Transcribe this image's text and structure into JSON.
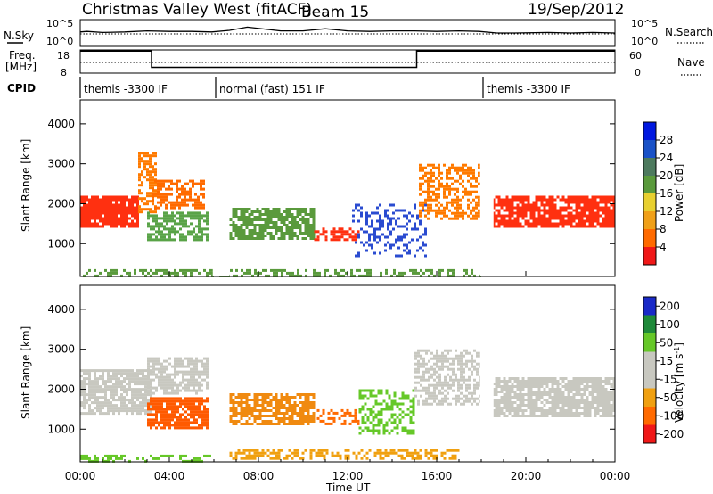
{
  "header": {
    "title": "Christmas Valley West (fitACF)",
    "beam": "Beam 15",
    "date": "19/Sep/2012"
  },
  "strip_labels": {
    "nsky": "N.Sky",
    "nsearch": "N.Search",
    "freq_line1": "Freq.",
    "freq_line2": "[MHz]",
    "nave": "Nave",
    "cpid": "CPID",
    "noise_tick_top": "10^5",
    "noise_tick_bottom": "10^0",
    "freq_tick_top": "18",
    "freq_tick_bottom": "8",
    "nave_tick_top": "60",
    "nave_tick_bottom": "0"
  },
  "modes": [
    {
      "label": "themis -3300 IF",
      "start_hour": 0.0,
      "end_hour": 6.0
    },
    {
      "label": "normal (fast) 151 IF",
      "start_hour": 6.0,
      "end_hour": 18.0
    },
    {
      "label": "themis -3300 IF",
      "start_hour": 18.0,
      "end_hour": 24.0
    }
  ],
  "chart_data": [
    {
      "type": "line",
      "name": "noise",
      "series": [
        {
          "name": "N.Sky",
          "x": [
            0,
            0.3,
            1,
            2,
            3,
            4,
            5,
            5.9,
            6.7,
            7.5,
            9,
            10,
            11,
            12,
            13,
            14,
            15,
            16,
            17,
            17.9,
            18.7,
            19.5,
            21,
            22,
            23,
            24
          ],
          "values": [
            2.7,
            2.8,
            2.6,
            2.7,
            2.9,
            2.8,
            2.8,
            2.7,
            3.0,
            3.6,
            2.9,
            2.9,
            3.3,
            2.9,
            2.8,
            2.9,
            2.9,
            2.8,
            2.9,
            2.8,
            2.5,
            2.5,
            2.6,
            2.5,
            2.6,
            2.5
          ]
        }
      ],
      "ylim": [
        0,
        5
      ]
    },
    {
      "type": "line",
      "name": "frequency",
      "series": [
        {
          "name": "Freq.",
          "x": [
            0,
            0.4,
            0.4,
            3.2,
            3.2,
            6.0,
            6.7,
            15.1,
            15.1,
            18.0,
            18.7,
            24
          ],
          "values": [
            17.5,
            17.5,
            17.5,
            17.5,
            10.5,
            10.5,
            10.5,
            10.5,
            17.5,
            17.5,
            17.5,
            17.5
          ]
        }
      ],
      "ylim": [
        8,
        18
      ]
    },
    {
      "type": "heatmap",
      "name": "power",
      "xlabel": "",
      "ylabel": "Slant Range [km]",
      "xlim": [
        0,
        24
      ],
      "ylim": [
        180,
        4600
      ],
      "yticks": [
        1000,
        2000,
        3000,
        4000
      ],
      "colorbar": {
        "label": "Power [dB]",
        "ticks": [
          "4",
          "8",
          "12",
          "16",
          "20",
          "24",
          "28"
        ],
        "colors": [
          "#0018e0",
          "#1a52c8",
          "#4d7a5e",
          "#5a9a3c",
          "#e8d030",
          "#f0a018",
          "#ff6a00",
          "#f01818"
        ]
      },
      "regions": [
        {
          "x": [
            0.0,
            2.6
          ],
          "y": [
            1400,
            2200
          ],
          "color": "#ff3010",
          "density": 0.9
        },
        {
          "x": [
            2.6,
            3.4
          ],
          "y": [
            1800,
            3300
          ],
          "color": "#ff7a00",
          "density": 0.6
        },
        {
          "x": [
            3.0,
            5.7
          ],
          "y": [
            1100,
            1800
          ],
          "color": "#59a347",
          "density": 0.7
        },
        {
          "x": [
            3.2,
            5.5
          ],
          "y": [
            1900,
            2600
          ],
          "color": "#ff6a00",
          "density": 0.55
        },
        {
          "x": [
            6.7,
            10.5
          ],
          "y": [
            1150,
            1900
          ],
          "color": "#5a9a3c",
          "density": 0.75
        },
        {
          "x": [
            10.5,
            12.5
          ],
          "y": [
            1100,
            1400
          ],
          "color": "#ff3010",
          "density": 0.6
        },
        {
          "x": [
            12.2,
            15.5
          ],
          "y": [
            700,
            2000
          ],
          "color": "#2a4bd0",
          "density": 0.3
        },
        {
          "x": [
            15.2,
            17.9
          ],
          "y": [
            1600,
            3000
          ],
          "color": "#ff7a00",
          "density": 0.55
        },
        {
          "x": [
            18.5,
            24.0
          ],
          "y": [
            1400,
            2200
          ],
          "color": "#ff3010",
          "density": 0.85
        },
        {
          "x": [
            0.0,
            18.0
          ],
          "y": [
            200,
            360
          ],
          "color": "#5a9a3c",
          "density": 0.45
        }
      ]
    },
    {
      "type": "heatmap",
      "name": "velocity",
      "xlabel": "Time UT",
      "ylabel": "Slant Range [km]",
      "xlim": [
        0,
        24
      ],
      "ylim": [
        180,
        4600
      ],
      "xticks": [
        "00:00",
        "04:00",
        "08:00",
        "12:00",
        "16:00",
        "20:00",
        "00:00"
      ],
      "yticks": [
        1000,
        2000,
        3000,
        4000
      ],
      "colorbar": {
        "label": "Velocity [m s^-1]",
        "ticks": [
          "200",
          "100",
          "50",
          "15",
          "-15",
          "-50",
          "-100",
          "-200"
        ],
        "colors": [
          "#1a2ac8",
          "#1f8a3a",
          "#66c828",
          "#c8c8c0",
          "#c8c8c0",
          "#f0a010",
          "#ff6a00",
          "#f01818"
        ]
      },
      "regions": [
        {
          "x": [
            0.0,
            3.2
          ],
          "y": [
            1400,
            2500
          ],
          "color": "#c8c8c0",
          "density": 0.8
        },
        {
          "x": [
            3.0,
            5.7
          ],
          "y": [
            1900,
            2800
          ],
          "color": "#c8c8c0",
          "density": 0.7
        },
        {
          "x": [
            3.0,
            5.7
          ],
          "y": [
            1000,
            1800
          ],
          "color": "#ff5a00",
          "density": 0.8
        },
        {
          "x": [
            6.7,
            10.5
          ],
          "y": [
            1100,
            1900
          ],
          "color": "#f08a10",
          "density": 0.75
        },
        {
          "x": [
            10.5,
            12.5
          ],
          "y": [
            1100,
            1500
          ],
          "color": "#ff6a00",
          "density": 0.5
        },
        {
          "x": [
            12.5,
            15.0
          ],
          "y": [
            900,
            2000
          ],
          "color": "#66c828",
          "density": 0.45
        },
        {
          "x": [
            15.0,
            17.9
          ],
          "y": [
            1600,
            3000
          ],
          "color": "#c8c8c0",
          "density": 0.55
        },
        {
          "x": [
            18.5,
            24.0
          ],
          "y": [
            1300,
            2300
          ],
          "color": "#c8c8c0",
          "density": 0.85
        },
        {
          "x": [
            6.7,
            17.0
          ],
          "y": [
            250,
            500
          ],
          "color": "#f0a010",
          "density": 0.45
        },
        {
          "x": [
            0.0,
            6.0
          ],
          "y": [
            200,
            360
          ],
          "color": "#66c828",
          "density": 0.4
        }
      ]
    }
  ]
}
